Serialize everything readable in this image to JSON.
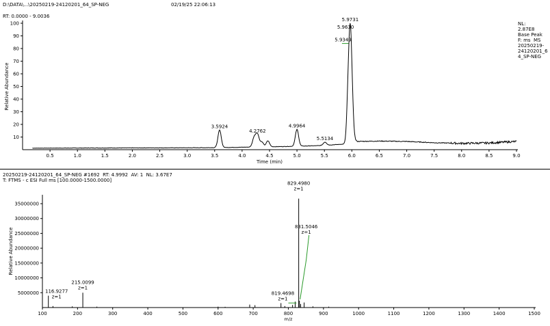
{
  "header": {
    "file_path": "D:\\DATA\\...\\20250219-24120201_64_SP-NEG",
    "datetime": "02/19/25 22:06:13"
  },
  "chromatogram": {
    "rt_range": "RT: 0.0000 - 9.0036",
    "info_lines": [
      "NL:",
      "2.87E8",
      "Base Peak",
      "F: ms  MS",
      "20250219-",
      "24120201_6",
      "4_SP-NEG"
    ]
  },
  "spectrum": {
    "scan_line": "20250219-24120201_64_SP-NEG #1692  RT: 4.9992  AV: 1  NL: 3.67E7",
    "filter_line": "T: FTMS - c ESI Full ms [100.0000-1500.0000]"
  },
  "chart_data": [
    {
      "type": "line",
      "xlabel": "Time (min)",
      "ylabel": "Relative Abundance",
      "xlim": [
        0,
        9.0
      ],
      "ylim": [
        0,
        100
      ],
      "x_ticks": [
        0.5,
        1.0,
        1.5,
        2.0,
        2.5,
        3.0,
        3.5,
        4.0,
        4.5,
        5.0,
        5.5,
        6.0,
        6.5,
        7.0,
        7.5,
        8.0,
        8.5,
        9.0
      ],
      "x_tick_labels": [
        "0.5",
        "1.0",
        "1.5",
        "2.0",
        "2.5",
        "3.0",
        "3.5",
        "4.0",
        "4.5",
        "5.0",
        "5.5",
        "6.0",
        "6.5",
        "7.0",
        "7.5",
        "8.0",
        "8.5",
        "9.0"
      ],
      "y_ticks": [
        10,
        20,
        30,
        40,
        50,
        60,
        70,
        80,
        90,
        100
      ],
      "y_tick_labels": [
        "10",
        "20",
        "30",
        "40",
        "50",
        "60",
        "70",
        "80",
        "90",
        "100"
      ],
      "line_color": "#000000",
      "peaks": [
        {
          "x": 3.59,
          "y": 15.5,
          "label": "3.5924"
        },
        {
          "x": 4.22,
          "y": 9.5,
          "label": ""
        },
        {
          "x": 4.28,
          "y": 12.0,
          "label": "4.2762"
        },
        {
          "x": 4.36,
          "y": 6.0,
          "label": ""
        },
        {
          "x": 4.47,
          "y": 7.0,
          "label": ""
        },
        {
          "x": 5.0,
          "y": 16.0,
          "label": "4.9964"
        },
        {
          "x": 5.51,
          "y": 6.0,
          "label": "5.5134"
        },
        {
          "x": 5.97,
          "y": 100.0,
          "label": "5.9731"
        },
        {
          "x": 5.96,
          "y": 94.0,
          "label": "5.9630"
        },
        {
          "x": 5.94,
          "y": 84.0,
          "label": "5.9349"
        }
      ],
      "baseline": [
        [
          0.18,
          1.2
        ],
        [
          1.0,
          1.3
        ],
        [
          2.0,
          1.4
        ],
        [
          3.0,
          1.5
        ],
        [
          3.4,
          1.6
        ],
        [
          3.8,
          1.8
        ],
        [
          4.1,
          2.0
        ],
        [
          4.9,
          2.6
        ],
        [
          5.4,
          3.2
        ],
        [
          5.9,
          4.5
        ],
        [
          6.05,
          6.5
        ],
        [
          6.5,
          6.8
        ],
        [
          7.0,
          6.5
        ],
        [
          7.5,
          5.5
        ],
        [
          8.0,
          5.0
        ],
        [
          8.5,
          5.3
        ],
        [
          9.0,
          6.5
        ]
      ]
    },
    {
      "type": "bar",
      "xlabel": "m/z",
      "ylabel": "Relative Abundance",
      "xlim": [
        100,
        1500
      ],
      "ylim": [
        0,
        38000000
      ],
      "x_ticks": [
        100,
        200,
        300,
        400,
        500,
        600,
        700,
        800,
        900,
        1000,
        1100,
        1200,
        1300,
        1400,
        1500
      ],
      "x_tick_labels": [
        "100",
        "200",
        "300",
        "400",
        "500",
        "600",
        "700",
        "800",
        "900",
        "1000",
        "1100",
        "1200",
        "1300",
        "1400",
        "1500"
      ],
      "y_ticks": [
        5000000,
        10000000,
        15000000,
        20000000,
        25000000,
        30000000,
        35000000
      ],
      "y_tick_labels": [
        "5000000",
        "10000000",
        "15000000",
        "20000000",
        "25000000",
        "30000000",
        "35000000"
      ],
      "labeled_peaks": [
        {
          "mz": 829.498,
          "intensity": 36700000,
          "label": "829.4980",
          "sub": "z=1"
        },
        {
          "mz": 831.5046,
          "intensity": 2300000,
          "label": "831.5046",
          "sub": "z=1"
        },
        {
          "mz": 819.4698,
          "intensity": 2000000,
          "label": "819.4698",
          "sub": "z=1"
        },
        {
          "mz": 215.0099,
          "intensity": 5000000,
          "label": "215.0099",
          "sub": "z=1"
        },
        {
          "mz": 116.9277,
          "intensity": 4000000,
          "label": "116.9277",
          "sub": "z=1"
        }
      ],
      "minor_peaks": [
        {
          "mz": 130.0,
          "intensity": 500000
        },
        {
          "mz": 185.0,
          "intensity": 400000
        },
        {
          "mz": 255.0,
          "intensity": 300000
        },
        {
          "mz": 600.0,
          "intensity": 300000
        },
        {
          "mz": 620.0,
          "intensity": 250000
        },
        {
          "mz": 690.0,
          "intensity": 1000000
        },
        {
          "mz": 705.0,
          "intensity": 800000
        },
        {
          "mz": 779.0,
          "intensity": 1500000
        },
        {
          "mz": 790.0,
          "intensity": 500000
        },
        {
          "mz": 812.0,
          "intensity": 900000
        },
        {
          "mz": 835.0,
          "intensity": 1200000
        },
        {
          "mz": 845.0,
          "intensity": 1700000
        },
        {
          "mz": 870.0,
          "intensity": 400000
        },
        {
          "mz": 915.0,
          "intensity": 300000
        }
      ]
    }
  ]
}
